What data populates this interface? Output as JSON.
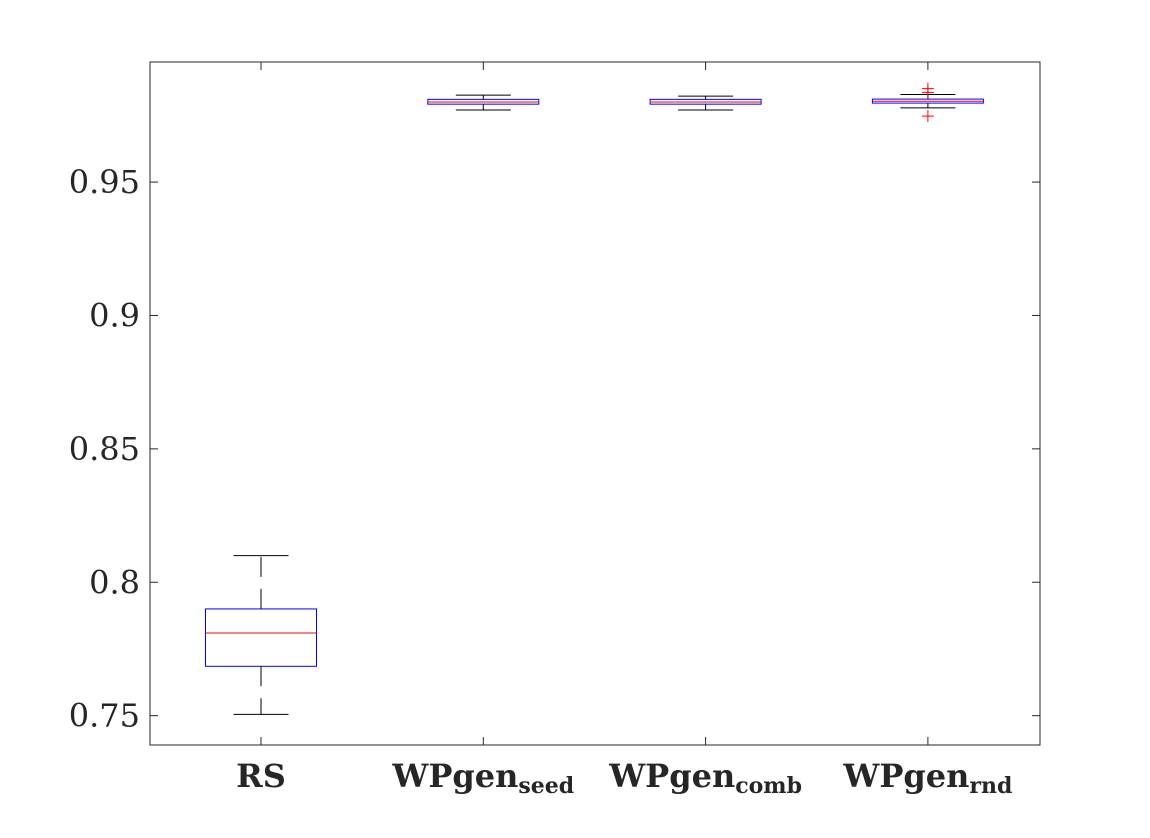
{
  "chart_data": {
    "type": "box",
    "title": "",
    "xlabel": "",
    "ylabel": "",
    "ylim": [
      0.739,
      0.995
    ],
    "yticks": [
      {
        "value": 0.75,
        "label": "0.75"
      },
      {
        "value": 0.8,
        "label": "0.8"
      },
      {
        "value": 0.85,
        "label": "0.85"
      },
      {
        "value": 0.9,
        "label": "0.9"
      },
      {
        "value": 0.95,
        "label": "0.95"
      }
    ],
    "categories": [
      {
        "base": "RS",
        "sub": ""
      },
      {
        "base": "WPgen",
        "sub": "seed"
      },
      {
        "base": "WPgen",
        "sub": "comb"
      },
      {
        "base": "WPgen",
        "sub": "rnd"
      }
    ],
    "boxes": [
      {
        "whisker_low": 0.7505,
        "q1": 0.7685,
        "median": 0.781,
        "q3": 0.79,
        "whisker_high": 0.81,
        "outliers": []
      },
      {
        "whisker_low": 0.977,
        "q1": 0.9792,
        "median": 0.98,
        "q3": 0.981,
        "whisker_high": 0.9826,
        "outliers": []
      },
      {
        "whisker_low": 0.977,
        "q1": 0.9792,
        "median": 0.98,
        "q3": 0.981,
        "whisker_high": 0.9822,
        "outliers": []
      },
      {
        "whisker_low": 0.9778,
        "q1": 0.9796,
        "median": 0.9803,
        "q3": 0.9811,
        "whisker_high": 0.9828,
        "outliers": [
          0.9747,
          0.9836,
          0.985
        ]
      }
    ],
    "colors": {
      "box": "#0000ff",
      "median": "#ff0000",
      "whisker": "#000000",
      "outlier": "#ff0000",
      "axis": "#262626"
    },
    "grid": false,
    "legend": "none"
  }
}
